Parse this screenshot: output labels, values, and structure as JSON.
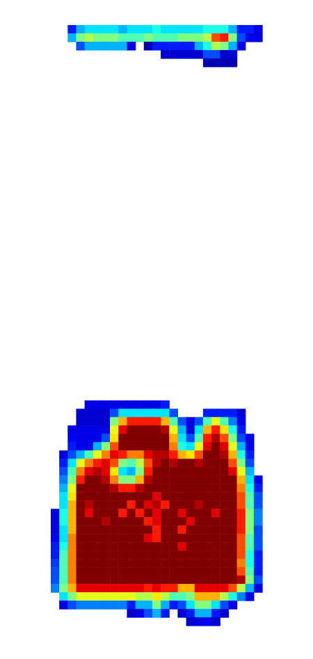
{
  "chart_data": {
    "type": "heatmap",
    "color": "jet",
    "tick_labels": false,
    "xlim": [
      0,
      37
    ],
    "ylim": [
      0,
      79
    ],
    "zlim": [
      0,
      1
    ],
    "x": [
      0,
      1,
      2,
      3,
      4,
      5,
      6,
      7,
      8,
      9,
      10,
      11,
      12,
      13,
      14,
      15,
      16,
      17,
      18,
      19,
      20,
      21,
      22,
      23,
      24,
      25,
      26,
      27,
      28,
      29,
      30,
      31,
      32,
      33,
      34,
      35,
      36
    ],
    "y": [
      3,
      4,
      5,
      6,
      7,
      48,
      49,
      50,
      51,
      52,
      53,
      54,
      55,
      56,
      57,
      58,
      59,
      60,
      61,
      62,
      63,
      64,
      65,
      66,
      67,
      68,
      69,
      70,
      71,
      72,
      73,
      74
    ],
    "z": [
      [
        null,
        null,
        null,
        null,
        null,
        null,
        null,
        null,
        0.15,
        0.3,
        0.35,
        0.35,
        0.35,
        0.35,
        0.3,
        0.35,
        0.35,
        0.35,
        0.4,
        0.35,
        0.35,
        0.35,
        0.35,
        0.35,
        0.4,
        0.4,
        0.4,
        0.3,
        0.15,
        0.15,
        0.1,
        null,
        null,
        null,
        null,
        null,
        null
      ],
      [
        null,
        null,
        null,
        null,
        null,
        null,
        null,
        null,
        0.3,
        0.5,
        0.55,
        0.5,
        0.5,
        0.5,
        0.45,
        0.45,
        0.45,
        0.5,
        0.45,
        0.45,
        0.45,
        0.5,
        0.5,
        0.5,
        0.55,
        0.8,
        0.85,
        0.5,
        0.2,
        0.1,
        0.1,
        null,
        null,
        null,
        null,
        null,
        null
      ],
      [
        null,
        null,
        null,
        null,
        null,
        null,
        null,
        null,
        null,
        0.2,
        0.3,
        0.3,
        0.3,
        0.3,
        0.3,
        0.1,
        null,
        0.05,
        0.15,
        0.15,
        0.15,
        0.15,
        0.15,
        0.3,
        0.4,
        0.55,
        0.5,
        0.3,
        0.1,
        null,
        null,
        null,
        null,
        null,
        null,
        null,
        null
      ],
      [
        null,
        null,
        null,
        null,
        null,
        null,
        null,
        null,
        null,
        null,
        null,
        null,
        null,
        null,
        null,
        null,
        null,
        null,
        null,
        0.08,
        0.08,
        0.08,
        0.08,
        0.08,
        0.2,
        0.2,
        0.08,
        0.08,
        null,
        null,
        null,
        null,
        null,
        null,
        null,
        null,
        null
      ],
      [
        null,
        null,
        null,
        null,
        null,
        null,
        null,
        null,
        null,
        null,
        null,
        null,
        null,
        null,
        null,
        null,
        null,
        null,
        null,
        null,
        null,
        null,
        null,
        null,
        0.05,
        0.05,
        0.05,
        0.05,
        null,
        null,
        null,
        null,
        null,
        null,
        null,
        null,
        null
      ],
      [
        null,
        null,
        null,
        null,
        null,
        null,
        null,
        null,
        null,
        null,
        0.1,
        0.1,
        0.1,
        0.1,
        0.1,
        0.1,
        0.1,
        0.1,
        0.1,
        0.15,
        null,
        null,
        null,
        null,
        null,
        null,
        null,
        null,
        null,
        null,
        null,
        null,
        null,
        null,
        null,
        null,
        null
      ],
      [
        null,
        null,
        null,
        null,
        null,
        null,
        null,
        null,
        null,
        0.08,
        0.08,
        0.08,
        0.08,
        0.2,
        0.35,
        0.35,
        0.35,
        0.35,
        0.35,
        0.35,
        0.2,
        null,
        null,
        null,
        0.15,
        0.15,
        0.15,
        0.15,
        0.08,
        null,
        null,
        null,
        null,
        null,
        null,
        null,
        null
      ],
      [
        null,
        null,
        null,
        null,
        null,
        null,
        null,
        null,
        null,
        0.08,
        0.08,
        0.08,
        0.08,
        0.5,
        0.7,
        0.85,
        0.85,
        0.85,
        0.85,
        0.7,
        0.45,
        0.2,
        0.1,
        0.2,
        0.45,
        0.6,
        0.45,
        0.25,
        0.1,
        null,
        null,
        null,
        null,
        null,
        null,
        null,
        null
      ],
      [
        null,
        null,
        null,
        null,
        null,
        null,
        null,
        null,
        0.1,
        0.1,
        0.1,
        0.1,
        0.1,
        0.6,
        0.9,
        1,
        1,
        1,
        1,
        0.95,
        0.6,
        0.3,
        0.1,
        0.35,
        0.7,
        0.85,
        0.65,
        0.4,
        0.15,
        null,
        null,
        null,
        null,
        null,
        null,
        null,
        null
      ],
      [
        null,
        null,
        null,
        null,
        null,
        null,
        null,
        null,
        0.12,
        0.1,
        0.1,
        0.1,
        0.2,
        0.65,
        1,
        1,
        1,
        1,
        1,
        1,
        0.7,
        0.35,
        0.2,
        0.45,
        0.85,
        0.95,
        0.8,
        0.5,
        0.2,
        0.1,
        null,
        null,
        null,
        null,
        null,
        null,
        null
      ],
      [
        null,
        null,
        null,
        null,
        null,
        null,
        null,
        null,
        0.15,
        0.1,
        0.1,
        0.3,
        0.5,
        0.8,
        1,
        1,
        1,
        1,
        1,
        1,
        0.75,
        0.4,
        0.35,
        0.6,
        0.9,
        1,
        0.9,
        0.6,
        0.3,
        0.1,
        null,
        null,
        null,
        null,
        null,
        null,
        null
      ],
      [
        null,
        null,
        null,
        null,
        null,
        null,
        null,
        0.1,
        0.2,
        0.3,
        0.45,
        0.6,
        0.75,
        0.9,
        0.85,
        0.75,
        0.75,
        0.9,
        0.95,
        0.95,
        0.85,
        0.7,
        0.65,
        0.8,
        1,
        1,
        0.95,
        0.7,
        0.4,
        0.15,
        null,
        null,
        null,
        null,
        null,
        null,
        null
      ],
      [
        null,
        null,
        null,
        null,
        null,
        null,
        null,
        0.15,
        0.35,
        0.6,
        0.75,
        0.85,
        0.9,
        0.8,
        0.5,
        0.45,
        0.55,
        0.8,
        0.95,
        1,
        0.95,
        1,
        1,
        0.95,
        1,
        1,
        1,
        0.8,
        0.5,
        0.2,
        null,
        null,
        null,
        null,
        null,
        null,
        null
      ],
      [
        null,
        null,
        null,
        null,
        null,
        null,
        null,
        0.2,
        0.45,
        0.75,
        0.9,
        0.95,
        0.9,
        0.65,
        0.35,
        0.3,
        0.5,
        0.85,
        1,
        1,
        1,
        1,
        1,
        1,
        1,
        1,
        1,
        0.9,
        0.6,
        0.3,
        null,
        null,
        null,
        null,
        null,
        null,
        null
      ],
      [
        null,
        null,
        null,
        null,
        null,
        null,
        null,
        0.25,
        0.5,
        0.85,
        1,
        1,
        0.95,
        0.75,
        0.5,
        0.5,
        0.7,
        0.95,
        1,
        1,
        1,
        1,
        1,
        1,
        1,
        1,
        1,
        1,
        0.7,
        0.35,
        0.1,
        null,
        null,
        null,
        null,
        null,
        null
      ],
      [
        null,
        null,
        null,
        null,
        null,
        null,
        null,
        0.3,
        0.6,
        1,
        1,
        1,
        1,
        0.95,
        0.85,
        0.85,
        0.95,
        1,
        1,
        1,
        1,
        1,
        1,
        1,
        1,
        1,
        1,
        1,
        0.75,
        0.4,
        0.15,
        null,
        null,
        null,
        null,
        null,
        null
      ],
      [
        null,
        null,
        null,
        null,
        null,
        null,
        null,
        0.35,
        0.65,
        1,
        1,
        1,
        1,
        1,
        1,
        1,
        1,
        1,
        0.9,
        1,
        1,
        1,
        1,
        1,
        1,
        1,
        1,
        1,
        0.8,
        0.45,
        0.2,
        null,
        null,
        null,
        null,
        null,
        null
      ],
      [
        null,
        null,
        null,
        null,
        null,
        null,
        null,
        0.35,
        0.7,
        1,
        0.95,
        1,
        1,
        1,
        1,
        0.85,
        1,
        0.9,
        0.95,
        0.85,
        1,
        1,
        1,
        0.95,
        1,
        1,
        1,
        1,
        0.8,
        0.45,
        0.2,
        null,
        null,
        null,
        null,
        null,
        null
      ],
      [
        null,
        null,
        null,
        null,
        null,
        null,
        0.1,
        0.4,
        0.7,
        1,
        0.9,
        1,
        1,
        1,
        0.85,
        1,
        0.85,
        1,
        0.9,
        1,
        1,
        0.9,
        1,
        1,
        1,
        0.9,
        1,
        1,
        0.85,
        0.5,
        0.25,
        null,
        null,
        null,
        null,
        null,
        null
      ],
      [
        null,
        null,
        null,
        null,
        null,
        null,
        0.1,
        0.4,
        0.7,
        1,
        1,
        1,
        0.95,
        1,
        1,
        1,
        1,
        0.85,
        0.9,
        1,
        1,
        1,
        0.9,
        1,
        1,
        1,
        1,
        1,
        0.85,
        0.5,
        0.25,
        null,
        null,
        null,
        null,
        null,
        null
      ],
      [
        null,
        null,
        null,
        null,
        null,
        null,
        0.1,
        0.35,
        0.7,
        1,
        1,
        1,
        1,
        1,
        1,
        1,
        1,
        1,
        0.85,
        1,
        1,
        0.85,
        1,
        1,
        1,
        1,
        1,
        1,
        0.85,
        0.5,
        0.2,
        null,
        null,
        null,
        null,
        null,
        null
      ],
      [
        null,
        null,
        null,
        null,
        null,
        null,
        0.12,
        0.35,
        0.75,
        1,
        1,
        1,
        1,
        1,
        1,
        1,
        1,
        0.9,
        0.85,
        1,
        1,
        1,
        1,
        1,
        1,
        1,
        1,
        1,
        0.8,
        0.45,
        0.2,
        null,
        null,
        null,
        null,
        null,
        null
      ],
      [
        null,
        null,
        null,
        null,
        null,
        null,
        0.15,
        0.4,
        0.75,
        1,
        1,
        1,
        1,
        1,
        1,
        1,
        1,
        1,
        1,
        1,
        1,
        0.9,
        1,
        1,
        1,
        1,
        1,
        1,
        0.8,
        0.45,
        0.2,
        null,
        null,
        null,
        null,
        null,
        null
      ],
      [
        null,
        null,
        null,
        null,
        null,
        null,
        0.15,
        0.45,
        0.75,
        1,
        1,
        1,
        1,
        1,
        1,
        1,
        1,
        1,
        1,
        1,
        1,
        1,
        1,
        1,
        1,
        1,
        1,
        1,
        0.8,
        0.4,
        0.15,
        null,
        null,
        null,
        null,
        null,
        null
      ],
      [
        null,
        null,
        null,
        null,
        null,
        null,
        0.18,
        0.45,
        0.75,
        1,
        1,
        1,
        1,
        1,
        1,
        1,
        1,
        1,
        1,
        1,
        1,
        1,
        1,
        1,
        1,
        1,
        1,
        1,
        0.75,
        0.4,
        0.15,
        null,
        null,
        null,
        null,
        null,
        null
      ],
      [
        null,
        null,
        null,
        null,
        null,
        null,
        0.2,
        0.45,
        0.75,
        1,
        1,
        1,
        1,
        1,
        1,
        1,
        1,
        1,
        1,
        1,
        1,
        1,
        1,
        1,
        1,
        1,
        1,
        1,
        0.8,
        0.45,
        0.15,
        null,
        null,
        null,
        null,
        null,
        null
      ],
      [
        null,
        null,
        null,
        null,
        null,
        null,
        0.2,
        0.45,
        0.75,
        1,
        1,
        1,
        1,
        1,
        1,
        1,
        1,
        1,
        1,
        1,
        1,
        1,
        1,
        1,
        1,
        1,
        1,
        1,
        0.95,
        0.5,
        0.2,
        null,
        null,
        null,
        null,
        null,
        null
      ],
      [
        null,
        null,
        null,
        null,
        null,
        null,
        0.25,
        0.5,
        0.7,
        0.9,
        0.9,
        0.9,
        0.9,
        0.9,
        0.9,
        0.9,
        0.9,
        0.85,
        0.9,
        0.85,
        0.85,
        0.7,
        0.7,
        0.9,
        0.9,
        0.9,
        0.9,
        0.8,
        0.55,
        0.3,
        0.1,
        null,
        null,
        null,
        null,
        null,
        null
      ],
      [
        null,
        null,
        null,
        null,
        null,
        null,
        null,
        0.35,
        0.5,
        0.6,
        0.6,
        0.6,
        0.6,
        0.6,
        0.6,
        0.6,
        0.55,
        0.55,
        0.65,
        0.55,
        0.45,
        0.45,
        0.5,
        0.7,
        0.7,
        0.7,
        0.55,
        0.4,
        0.25,
        0.1,
        null,
        null,
        null,
        null,
        null,
        null,
        null
      ],
      [
        null,
        null,
        null,
        null,
        null,
        null,
        null,
        0.1,
        0.2,
        0.25,
        0.25,
        0.25,
        0.25,
        0.25,
        0.25,
        0.15,
        0.3,
        0.3,
        0.5,
        0.3,
        0.15,
        0.2,
        0.35,
        0.5,
        0.5,
        0.35,
        0.2,
        0.1,
        null,
        null,
        null,
        null,
        null,
        null,
        null,
        null,
        null
      ],
      [
        null,
        null,
        null,
        null,
        null,
        null,
        null,
        null,
        null,
        null,
        null,
        null,
        null,
        null,
        null,
        0.08,
        0.1,
        0.2,
        0.3,
        0.15,
        null,
        0.08,
        0.15,
        0.3,
        0.3,
        0.15,
        0.08,
        null,
        null,
        null,
        null,
        null,
        null,
        null,
        null,
        null,
        null
      ],
      [
        null,
        null,
        null,
        null,
        null,
        null,
        null,
        null,
        null,
        null,
        null,
        null,
        null,
        null,
        null,
        null,
        null,
        null,
        null,
        null,
        null,
        null,
        0.08,
        0.1,
        0.12,
        0.08,
        null,
        null,
        null,
        null,
        null,
        null,
        null,
        null,
        null,
        null,
        null
      ]
    ]
  }
}
